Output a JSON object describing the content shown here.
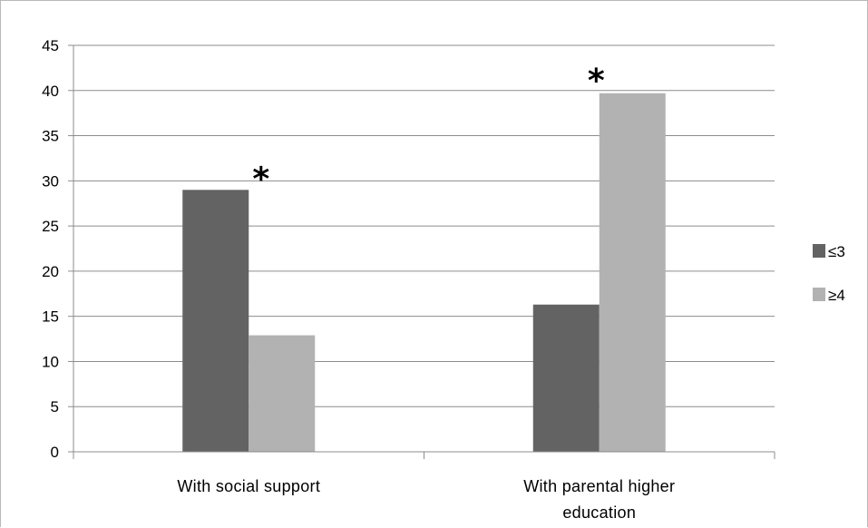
{
  "chart_data": {
    "type": "bar",
    "categories": [
      "With social support",
      "With parental higher education"
    ],
    "category_label_lines": [
      [
        "With social support"
      ],
      [
        "With parental higher",
        "education"
      ]
    ],
    "series": [
      {
        "name": "≤3",
        "values": [
          29,
          16.3
        ],
        "color": "#636363"
      },
      {
        "name": "≥4",
        "values": [
          12.9,
          39.7
        ],
        "color": "#b2b2b2"
      }
    ],
    "yticks": [
      "0",
      "5",
      "10",
      "15",
      "20",
      "25",
      "30",
      "35",
      "40",
      "45"
    ],
    "ylim": [
      0,
      45
    ],
    "grid": true,
    "legend_position": "right",
    "annotations": [
      {
        "text": "*",
        "category": 0,
        "series": 0
      },
      {
        "text": "*",
        "category": 1,
        "series": 1
      }
    ],
    "title": "",
    "xlabel": "",
    "ylabel": ""
  }
}
